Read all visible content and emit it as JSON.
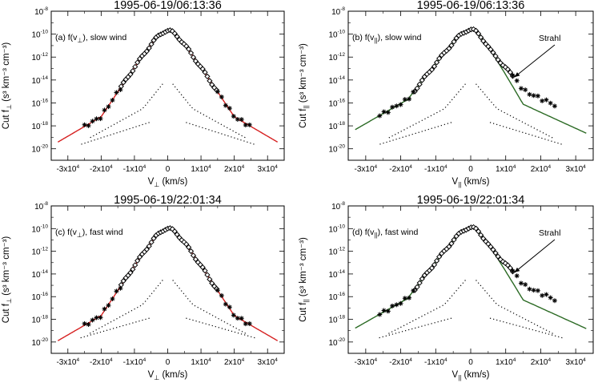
{
  "chart_data": [
    {
      "type": "scatter",
      "panel": "a",
      "title": "1995-06-19/06:13:36",
      "annotation_prefix": "(a) f(v",
      "annotation_sub": "⊥",
      "annotation_suffix": "), slow wind",
      "xlabel_main": "V",
      "xlabel_sub": "⊥",
      "xlabel_unit": " (km/s)",
      "ylabel_pre": "Cut f",
      "ylabel_sub": "⊥",
      "ylabel_post": " (s³ km⁻³ cm⁻³)",
      "xlim": [
        -35000,
        35000
      ],
      "ylim_log10": [
        -21,
        -8
      ],
      "xticks": [
        -30000,
        -20000,
        -10000,
        0,
        10000,
        20000,
        30000
      ],
      "yticks_exp": [
        -20,
        -18,
        -16,
        -14,
        -12,
        -10,
        -8
      ],
      "fit_color": "#d62020",
      "fit": {
        "peak_log": -9.7,
        "core_width": 3200,
        "core_exp": 2.0,
        "inner_slope_neg": 0.00044,
        "inner_slope_pos": 0.00044,
        "tail_slope": 0.00017,
        "break": 20000,
        "tail_slope_pos": 0.00017,
        "break_pos": 20000
      },
      "measurements": {
        "diamond_range": [
          -14000,
          15000
        ],
        "star_start_neg": -25000,
        "star_start_pos": 25000
      },
      "threshold": {
        "peak_log": -13.8,
        "tail_start": 7500,
        "upper_end_log": -17.8,
        "lower_log": [
          -19.7,
          -19.0
        ]
      }
    },
    {
      "type": "scatter",
      "panel": "b",
      "title": "1995-06-19/06:13:36",
      "annotation_prefix": "(b) f(v",
      "annotation_sub": "||",
      "annotation_suffix": "), slow wind",
      "strahl_label": "Strahl",
      "xlabel_main": "V",
      "xlabel_sub": "||",
      "xlabel_unit": " (km/s)",
      "ylabel_pre": "Cut f",
      "ylabel_sub": "||",
      "ylabel_post": " (s³ km⁻³ cm⁻³)",
      "xlim": [
        -35000,
        35000
      ],
      "ylim_log10": [
        -21,
        -8
      ],
      "xticks": [
        -30000,
        -20000,
        -10000,
        0,
        10000,
        20000,
        30000
      ],
      "yticks_exp": [
        -20,
        -18,
        -16,
        -14,
        -12,
        -10,
        -8
      ],
      "fit_color": "#2b6a24",
      "fit": {
        "peak_log": -9.6,
        "core_width": 3000,
        "core_exp": 2.0,
        "inner_slope_neg": 0.0004,
        "inner_slope_pos": 0.00053,
        "tail_slope": 0.000175,
        "break": 18000,
        "tail_slope_pos": 0.00014,
        "break_pos": 15000
      },
      "measurements": {
        "diamond_range": [
          -16000,
          12000
        ],
        "star_start_neg": -26000,
        "star_start_pos": 25000,
        "strahl_offset": 1.2
      },
      "threshold": {
        "peak_log": -13.8,
        "tail_start": 7500,
        "upper_end_log": -17.8,
        "lower_log": [
          -19.7,
          -19.0
        ]
      }
    },
    {
      "type": "scatter",
      "panel": "c",
      "title": "1995-06-19/22:01:34",
      "annotation_prefix": "(c) f(v",
      "annotation_sub": "⊥",
      "annotation_suffix": "), fast wind",
      "xlabel_main": "V",
      "xlabel_sub": "⊥",
      "xlabel_unit": " (km/s)",
      "ylabel_pre": "Cut f",
      "ylabel_sub": "⊥",
      "ylabel_post": " (s³ km⁻³ cm⁻³)",
      "xlim": [
        -35000,
        35000
      ],
      "ylim_log10": [
        -21,
        -8
      ],
      "xticks": [
        -30000,
        -20000,
        -10000,
        0,
        10000,
        20000,
        30000
      ],
      "yticks_exp": [
        -20,
        -18,
        -16,
        -14,
        -12,
        -10,
        -8
      ],
      "fit_color": "#d62020",
      "fit": {
        "peak_log": -10.0,
        "core_width": 3200,
        "core_exp": 2.0,
        "inner_slope_neg": 0.00045,
        "inner_slope_pos": 0.00045,
        "tail_slope": 0.00017,
        "break": 20000,
        "tail_slope_pos": 0.00017,
        "break_pos": 20000
      },
      "measurements": {
        "diamond_range": [
          -14000,
          15000
        ],
        "star_start_neg": -25000,
        "star_start_pos": 25000
      },
      "threshold": {
        "peak_log": -14.0,
        "tail_start": 7500,
        "upper_end_log": -18.0,
        "lower_log": [
          -19.7,
          -19.2
        ]
      }
    },
    {
      "type": "scatter",
      "panel": "d",
      "title": "1995-06-19/22:01:34",
      "annotation_prefix": "(d) f(v",
      "annotation_sub": "||",
      "annotation_suffix": "), fast wind",
      "strahl_label": "Strahl",
      "xlabel_main": "V",
      "xlabel_sub": "||",
      "xlabel_unit": " (km/s)",
      "ylabel_pre": "Cut f",
      "ylabel_sub": "||",
      "ylabel_post": " (s³ km⁻³ cm⁻³)",
      "xlim": [
        -35000,
        35000
      ],
      "ylim_log10": [
        -21,
        -8
      ],
      "xticks": [
        -30000,
        -20000,
        -10000,
        0,
        10000,
        20000,
        30000
      ],
      "yticks_exp": [
        -20,
        -18,
        -16,
        -14,
        -12,
        -10,
        -8
      ],
      "fit_color": "#2b6a24",
      "fit": {
        "peak_log": -9.9,
        "core_width": 3000,
        "core_exp": 2.0,
        "inner_slope_neg": 0.00041,
        "inner_slope_pos": 0.00052,
        "tail_slope": 0.000175,
        "break": 18000,
        "tail_slope_pos": 0.00014,
        "break_pos": 15000
      },
      "measurements": {
        "diamond_range": [
          -16000,
          12000
        ],
        "star_start_neg": -26000,
        "star_start_pos": 25000,
        "strahl_offset": 1.3
      },
      "threshold": {
        "peak_log": -14.0,
        "tail_start": 7500,
        "upper_end_log": -18.0,
        "lower_log": [
          -19.7,
          -19.2
        ]
      }
    }
  ]
}
